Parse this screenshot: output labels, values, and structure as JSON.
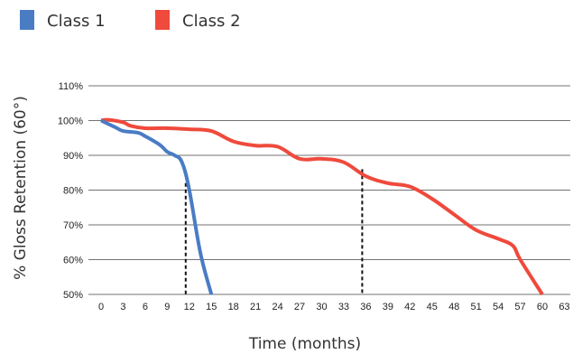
{
  "chart_data": {
    "type": "line",
    "xlabel": "Time (months)",
    "ylabel": "% Gloss Retention (60°)",
    "x_ticks": [
      "0",
      "3",
      "6",
      "9",
      "12",
      "15",
      "18",
      "21",
      "24",
      "27",
      "30",
      "33",
      "36",
      "39",
      "42",
      "45",
      "48",
      "51",
      "54",
      "57",
      "60",
      "63"
    ],
    "y_ticks": [
      "50%",
      "60%",
      "70%",
      "80%",
      "90%",
      "100%",
      "110%"
    ],
    "xlim": [
      0,
      63
    ],
    "ylim": [
      50,
      110
    ],
    "grid": "horizontal",
    "legend_position": "top-left",
    "series": [
      {
        "name": "Class 1",
        "color": "#4a7cc4",
        "x": [
          0,
          2,
          3,
          5,
          6,
          8,
          9,
          10,
          11,
          12,
          13.5,
          15
        ],
        "y": [
          100,
          98,
          97,
          96.5,
          95.5,
          93,
          91,
          90,
          88,
          80,
          62,
          50
        ]
      },
      {
        "name": "Class 2",
        "color": "#ef4a3c",
        "x": [
          0,
          1,
          3,
          4,
          6,
          9,
          12,
          15,
          18,
          21,
          24,
          27,
          30,
          33,
          36,
          39,
          42,
          45,
          48,
          51,
          54,
          56,
          57,
          60
        ],
        "y": [
          100,
          100.2,
          99.5,
          98.5,
          97.8,
          97.8,
          97.5,
          97,
          94,
          92.8,
          92.5,
          89,
          89,
          88,
          84,
          82,
          81,
          77.5,
          73,
          68.5,
          66,
          64,
          60,
          50
        ]
      }
    ],
    "reference_lines": [
      {
        "x": 12,
        "y_from": 50,
        "y_to": 82
      },
      {
        "x": 36,
        "y_from": 50,
        "y_to": 86
      }
    ]
  }
}
